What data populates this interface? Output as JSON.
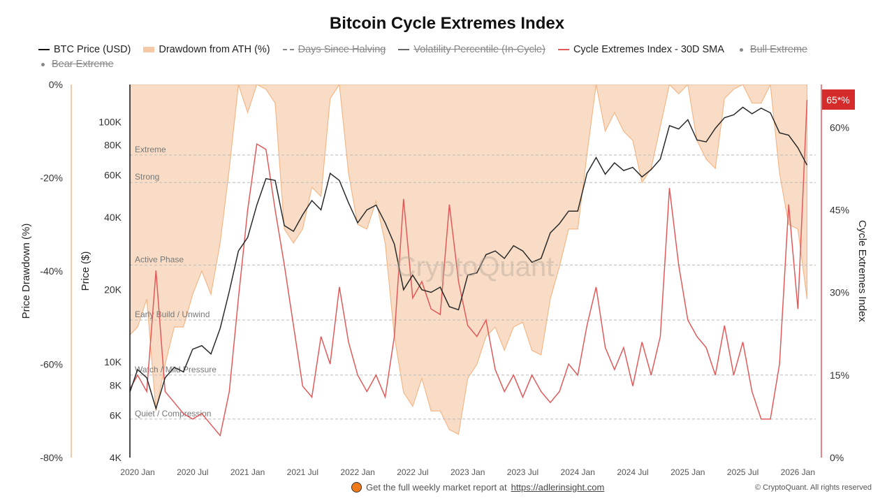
{
  "chart_data": {
    "type": "line",
    "title": "Bitcoin Cycle Extremes Index",
    "legend": [
      {
        "label": "BTC Price (USD)",
        "color": "#111111",
        "style": "line",
        "visible": true
      },
      {
        "label": "Drawdown from ATH (%)",
        "color": "#f5c9a5",
        "style": "area",
        "visible": true
      },
      {
        "label": "Days Since Halving",
        "color": "#888888",
        "style": "dash",
        "visible": false
      },
      {
        "label": "Volatility Percentile (In-Cycle)",
        "color": "#666666",
        "style": "line",
        "visible": false
      },
      {
        "label": "Cycle Extremes Index - 30D SMA",
        "color": "#e05a5a",
        "style": "line",
        "visible": true
      },
      {
        "label": "Bull Extreme",
        "color": "#888888",
        "style": "dot",
        "visible": false
      },
      {
        "label": "Bear Extreme",
        "color": "#888888",
        "style": "dot",
        "visible": false
      }
    ],
    "legend_placement": "top",
    "x": {
      "start": "2019-11",
      "end": "2026-02",
      "step": "month",
      "ticks": [
        "2020 Jan",
        "2020 Jul",
        "2021 Jan",
        "2021 Jul",
        "2022 Jan",
        "2022 Jul",
        "2023 Jan",
        "2023 Jul",
        "2024 Jan",
        "2024 Jul",
        "2025 Jan",
        "2025 Jul",
        "2026 Jan"
      ]
    },
    "axes": {
      "drawdown": {
        "label": "Price Drawdown (%)",
        "range": [
          -80,
          0
        ],
        "ticks": [
          0,
          -20,
          -40,
          -60,
          -80
        ],
        "tick_labels": [
          "0%",
          "-20%",
          "-40%",
          "-60%",
          "-80%"
        ],
        "color": "#f5c9a5"
      },
      "price": {
        "label": "Price ($)",
        "scale": "log",
        "range": [
          4000,
          143000
        ],
        "ticks": [
          4000,
          6000,
          8000,
          10000,
          20000,
          40000,
          60000,
          80000,
          100000
        ],
        "tick_labels": [
          "4K",
          "6K",
          "8K",
          "10K",
          "20K",
          "40K",
          "60K",
          "80K",
          "100K"
        ]
      },
      "index": {
        "label": "Cycle Extremes Index",
        "range": [
          0,
          67.8
        ],
        "ticks": [
          0,
          15,
          30,
          45,
          60
        ],
        "tick_labels": [
          "0%",
          "15%",
          "30%",
          "45%",
          "60%"
        ],
        "color": "#e05a5a"
      }
    },
    "thresholds": [
      {
        "label": "Extreme",
        "value": 55
      },
      {
        "label": "Strong",
        "value": 50
      },
      {
        "label": "Active Phase",
        "value": 35
      },
      {
        "label": "Early Build / Unwind",
        "value": 25
      },
      {
        "label": "Watch / Mild Pressure",
        "value": 15
      },
      {
        "label": "Quiet / Compression",
        "value": 7
      }
    ],
    "current_badge": {
      "label": "65*%",
      "value": 65,
      "color": "#d62b2b"
    },
    "series": [
      {
        "name": "BTC Price (USD)",
        "axis": "price",
        "values": [
          7500,
          7200,
          9300,
          8600,
          6400,
          8600,
          9500,
          9100,
          11300,
          11700,
          10800,
          13800,
          19700,
          29000,
          33000,
          45000,
          58000,
          57000,
          37000,
          35000,
          41000,
          47000,
          43000,
          61000,
          57000,
          46000,
          38000,
          43000,
          45000,
          38000,
          31000,
          20000,
          23000,
          20000,
          19500,
          20500,
          17000,
          16500,
          23000,
          23500,
          28000,
          29000,
          27000,
          30500,
          29000,
          26000,
          27000,
          34500,
          37700,
          42500,
          42500,
          61000,
          71000,
          60500,
          67500,
          62700,
          64600,
          59000,
          63300,
          70000,
          96400,
          93400,
          102000,
          84000,
          82500,
          94000,
          104000,
          107000,
          115000,
          108000,
          114000,
          109000,
          90000,
          88000,
          78000,
          66000
        ]
      },
      {
        "name": "Drawdown from ATH (%)",
        "axis": "drawdown",
        "values": [
          -60,
          -54,
          -52,
          -46,
          -70,
          -60,
          -52,
          -52,
          -45,
          -40,
          -45,
          -34,
          -18,
          0,
          -6,
          0,
          -1,
          -4,
          -31,
          -34,
          -31,
          -22,
          -24,
          -3,
          0,
          -19,
          -30,
          -31,
          -25,
          -34,
          -54,
          -66,
          -69,
          -63,
          -70,
          -70,
          -74,
          -75,
          -63,
          -60,
          -54,
          -52,
          -57,
          -52,
          -51,
          -57,
          -58,
          -46,
          -39,
          -31,
          -31,
          -15,
          0,
          -10,
          -6,
          -10,
          -12,
          -21,
          -18,
          -9,
          0,
          -2,
          0,
          -12,
          -16,
          -18,
          -3,
          -1,
          0,
          -4,
          -4,
          0,
          -19,
          -30,
          -31,
          -46
        ]
      },
      {
        "name": "Cycle Extremes Index - 30D SMA",
        "axis": "index",
        "values": [
          12,
          12,
          15,
          12,
          34,
          12,
          10,
          8,
          7,
          8,
          6,
          4,
          12,
          29,
          45,
          57,
          56,
          45,
          35,
          24,
          13,
          11,
          22,
          17,
          31,
          21,
          15,
          12,
          15,
          11,
          22,
          47,
          29,
          32,
          27,
          26,
          46,
          32,
          24,
          22,
          25,
          16,
          12,
          15,
          11,
          15,
          12,
          10,
          12,
          17,
          15,
          24,
          31,
          20,
          16,
          20,
          13,
          21,
          15,
          22,
          49,
          35,
          25,
          22,
          20,
          15,
          24,
          15,
          21,
          12,
          7,
          7,
          17,
          46,
          27,
          65
        ]
      }
    ],
    "grid": false,
    "watermark": "CryptoQuant"
  },
  "footer": {
    "text": "Get the full weekly market report at",
    "link": "https://adlerinsight.com",
    "copyright": "© CryptoQuant. All rights reserved"
  }
}
